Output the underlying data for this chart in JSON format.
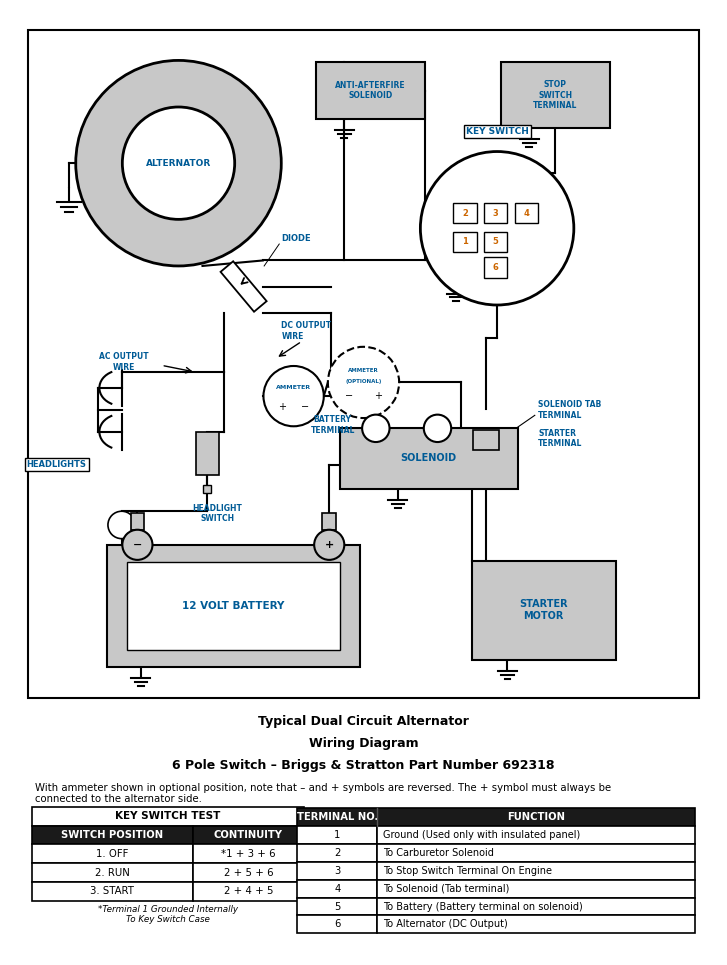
{
  "bg_color": "#ffffff",
  "border_color": "#000000",
  "component_fill": "#c8c8c8",
  "component_edge": "#000000",
  "text_color_blue": "#005b96",
  "text_color_black": "#000000",
  "text_color_orange": "#cc6600",
  "title_line1": "Typical Dual Circuit Alternator",
  "title_line2": "Wiring Diagram",
  "title_line3": "6 Pole Switch – Briggs & Stratton Part Number 692318",
  "note_text": "With ammeter shown in optional position, note that – and + symbols are reversed. The + symbol must always be\nconnected to the alternator side.",
  "key_switch_title": "KEY SWITCH TEST",
  "key_switch_headers": [
    "SWITCH POSITION",
    "CONTINUITY"
  ],
  "key_switch_rows": [
    [
      "1. OFF",
      "*1 + 3 + 6"
    ],
    [
      "2. RUN",
      "2 + 5 + 6"
    ],
    [
      "3. START",
      "2 + 4 + 5"
    ]
  ],
  "key_switch_footnote": "*Terminal 1 Grounded Internally\nTo Key Switch Case",
  "terminal_headers": [
    "TERMINAL NO.",
    "FUNCTION"
  ],
  "terminal_rows": [
    [
      "1",
      "Ground (Used only with insulated panel)"
    ],
    [
      "2",
      "To Carburetor Solenoid"
    ],
    [
      "3",
      "To Stop Switch Terminal On Engine"
    ],
    [
      "4",
      "To Solenoid (Tab terminal)"
    ],
    [
      "5",
      "To Battery (Battery terminal on solenoid)"
    ],
    [
      "6",
      "To Alternator (DC Output)"
    ]
  ]
}
